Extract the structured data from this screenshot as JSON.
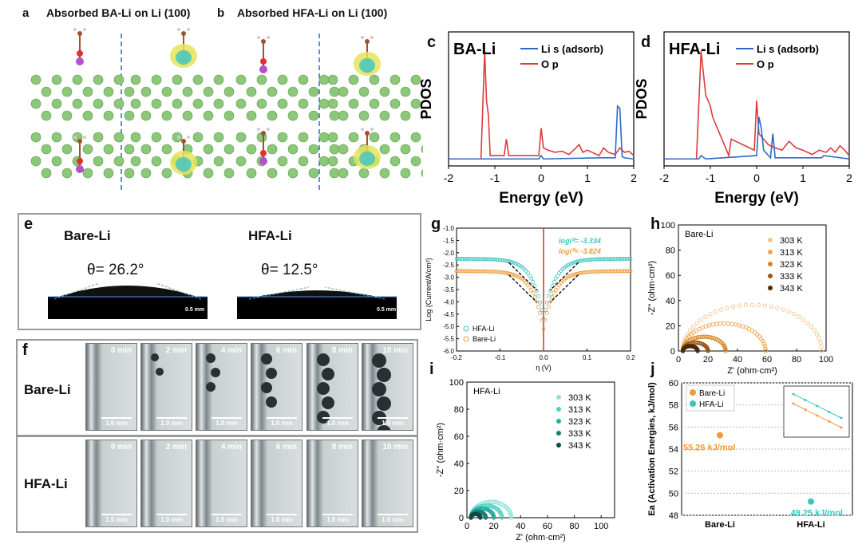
{
  "panel_a": {
    "label": "a",
    "title": "Absorbed BA-Li on Li (100)"
  },
  "panel_b": {
    "label": "b",
    "title": "Absorbed HFA-Li on Li (100)"
  },
  "panel_c": {
    "label": "c",
    "inner_title": "BA-Li",
    "ylabel": "PDOS",
    "xlabel": "Energy (eV)",
    "legend": [
      "Li s (adsorb)",
      "O p"
    ]
  },
  "panel_d": {
    "label": "d",
    "inner_title": "HFA-Li",
    "ylabel": "PDOS",
    "xlabel": "Energy (eV)",
    "legend": [
      "Li s (adsorb)",
      "O p"
    ]
  },
  "panel_e": {
    "label": "e",
    "left_name": "Bare-Li",
    "right_name": "HFA-Li",
    "left_angle": "θ= 26.2°",
    "right_angle": "θ= 12.5°",
    "scale": "0.5 mm"
  },
  "panel_f": {
    "label": "f",
    "rows": [
      "Bare-Li",
      "HFA-Li"
    ],
    "times": [
      "0 min",
      "2 min",
      "4 min",
      "6 min",
      "8 min",
      "10 min"
    ],
    "scale": "1.0 mm"
  },
  "panel_g": {
    "label": "g",
    "annot1": "logi⁰= -3.334",
    "annot2": "logi⁰= -3.824"
  },
  "panel_h": {
    "label": "h"
  },
  "panel_i": {
    "label": "i"
  },
  "panel_j": {
    "label": "j"
  },
  "colors": {
    "blue": "#2f6bc4",
    "red": "#dd3b3b",
    "teal": "#3cc5bd",
    "orange": "#f09a3a",
    "brown": "#8a4a14"
  },
  "chart_data": [
    {
      "id": "c",
      "type": "line",
      "title": "BA-Li",
      "xlabel": "Energy (eV)",
      "ylabel": "PDOS",
      "xlim": [
        -2,
        2
      ],
      "xticks": [
        -2,
        -1,
        0,
        1,
        2
      ],
      "series": [
        {
          "name": "O p",
          "x": [
            -2.0,
            -1.3,
            -1.22,
            -1.18,
            -1.14,
            -1.1,
            -0.8,
            -0.75,
            -0.7,
            -0.05,
            0.0,
            0.05,
            0.15,
            0.3,
            0.45,
            0.6,
            0.75,
            0.82,
            0.9,
            1.0,
            1.25,
            1.35,
            1.45,
            1.6,
            1.7,
            1.8,
            1.9,
            2.0
          ],
          "y": [
            0.02,
            0.02,
            1.0,
            0.55,
            0.42,
            0.05,
            0.05,
            0.2,
            0.05,
            0.05,
            0.3,
            0.12,
            0.1,
            0.08,
            0.09,
            0.06,
            0.12,
            0.15,
            0.08,
            0.1,
            0.05,
            0.12,
            0.08,
            0.06,
            0.12,
            0.08,
            0.09,
            0.05
          ]
        },
        {
          "name": "Li s (adsorb)",
          "x": [
            -2.0,
            -0.9,
            -0.05,
            0.0,
            0.05,
            1.3,
            1.6,
            1.65,
            1.7,
            1.75,
            1.8,
            2.0
          ],
          "y": [
            0.02,
            0.02,
            0.02,
            0.05,
            0.02,
            0.03,
            0.03,
            0.5,
            0.48,
            0.04,
            0.03,
            0.02
          ]
        }
      ]
    },
    {
      "id": "d",
      "type": "line",
      "title": "HFA-Li",
      "xlabel": "Energy (eV)",
      "ylabel": "PDOS",
      "xlim": [
        -2,
        2
      ],
      "xticks": [
        -2,
        -1,
        0,
        1,
        2
      ],
      "series": [
        {
          "name": "O p",
          "x": [
            -2.0,
            -1.3,
            -1.2,
            -1.1,
            -1.0,
            -0.95,
            -0.6,
            -0.55,
            -0.05,
            0.0,
            0.05,
            0.15,
            0.25,
            0.4,
            0.55,
            0.7,
            0.85,
            1.0,
            1.2,
            1.35,
            1.5,
            1.6,
            1.7,
            1.8,
            1.9,
            2.0
          ],
          "y": [
            0.02,
            0.02,
            1.0,
            0.6,
            0.5,
            0.4,
            0.05,
            0.2,
            0.1,
            0.55,
            0.25,
            0.2,
            0.15,
            0.12,
            0.1,
            0.18,
            0.12,
            0.1,
            0.06,
            0.1,
            0.08,
            0.12,
            0.08,
            0.14,
            0.1,
            0.05
          ]
        },
        {
          "name": "Li s (adsorb)",
          "x": [
            -2.0,
            -1.25,
            -1.2,
            -1.1,
            0.0,
            0.05,
            0.1,
            0.15,
            0.3,
            0.35,
            0.4,
            1.4,
            1.45,
            2.0
          ],
          "y": [
            0.02,
            0.02,
            0.05,
            0.02,
            0.05,
            0.4,
            0.3,
            0.1,
            0.03,
            0.25,
            0.03,
            0.03,
            0.05,
            0.02
          ]
        }
      ]
    },
    {
      "id": "g",
      "type": "line",
      "xlabel": "η (V)",
      "ylabel": "Log (Current/A/cm²)",
      "xlim": [
        -0.2,
        0.2
      ],
      "ylim": [
        -6.0,
        -1.0
      ],
      "xticks": [
        -0.2,
        -0.1,
        0.0,
        0.1,
        0.2
      ],
      "yticks": [
        -1.0,
        -1.5,
        -2.0,
        -2.5,
        -3.0,
        -3.5,
        -4.0,
        -4.5,
        -5.0,
        -5.5,
        -6.0
      ],
      "series": [
        {
          "name": "HFA-Li",
          "logi0": -3.334,
          "plateau": -2.25,
          "min": -4.7
        },
        {
          "name": "Bare-Li",
          "logi0": -3.824,
          "plateau": -2.75,
          "min": -5.1
        }
      ]
    },
    {
      "id": "h",
      "type": "scatter",
      "title": "Bare-Li",
      "xlabel": "Z' (ohm·cm²)",
      "ylabel": "-Z'' (ohm·cm²)",
      "xlim": [
        0,
        100
      ],
      "ylim": [
        0,
        100
      ],
      "xticks": [
        0,
        20,
        40,
        60,
        80,
        100
      ],
      "yticks": [
        0,
        20,
        40,
        60,
        80,
        100
      ],
      "series": [
        {
          "name": "303 K",
          "x0": 3,
          "x1": 97
        },
        {
          "name": "313 K",
          "x0": 3,
          "x1": 59
        },
        {
          "name": "323 K",
          "x0": 3,
          "x1": 32
        },
        {
          "name": "333 K",
          "x0": 3,
          "x1": 20
        },
        {
          "name": "343 K",
          "x0": 3,
          "x1": 13
        }
      ]
    },
    {
      "id": "i",
      "type": "scatter",
      "title": "HFA-Li",
      "xlabel": "Z' (ohm·cm²)",
      "ylabel": "-Z'' (ohm·cm²)",
      "xlim": [
        0,
        110
      ],
      "ylim": [
        0,
        100
      ],
      "xticks": [
        0,
        20,
        40,
        60,
        80,
        100
      ],
      "yticks": [
        0,
        20,
        40,
        60,
        80,
        100
      ],
      "series": [
        {
          "name": "303 K",
          "x0": 3,
          "x1": 33
        },
        {
          "name": "313 K",
          "x0": 3,
          "x1": 26
        },
        {
          "name": "323 K",
          "x0": 3,
          "x1": 20
        },
        {
          "name": "333 K",
          "x0": 3,
          "x1": 14
        },
        {
          "name": "343 K",
          "x0": 3,
          "x1": 10
        }
      ]
    },
    {
      "id": "j",
      "type": "scatter",
      "ylabel": "Ea (Activation Energies, kJ/mol)",
      "categories": [
        "Bare-Li",
        "HFA-Li"
      ],
      "ylim": [
        48,
        60
      ],
      "yticks": [
        48,
        50,
        52,
        54,
        56,
        58,
        60
      ],
      "series": [
        {
          "name": "Bare-Li",
          "value": 55.26,
          "label": "55.26 kJ/mol"
        },
        {
          "name": "HFA-Li",
          "value": 49.25,
          "label": "49.25 kJ/mol"
        }
      ]
    }
  ]
}
